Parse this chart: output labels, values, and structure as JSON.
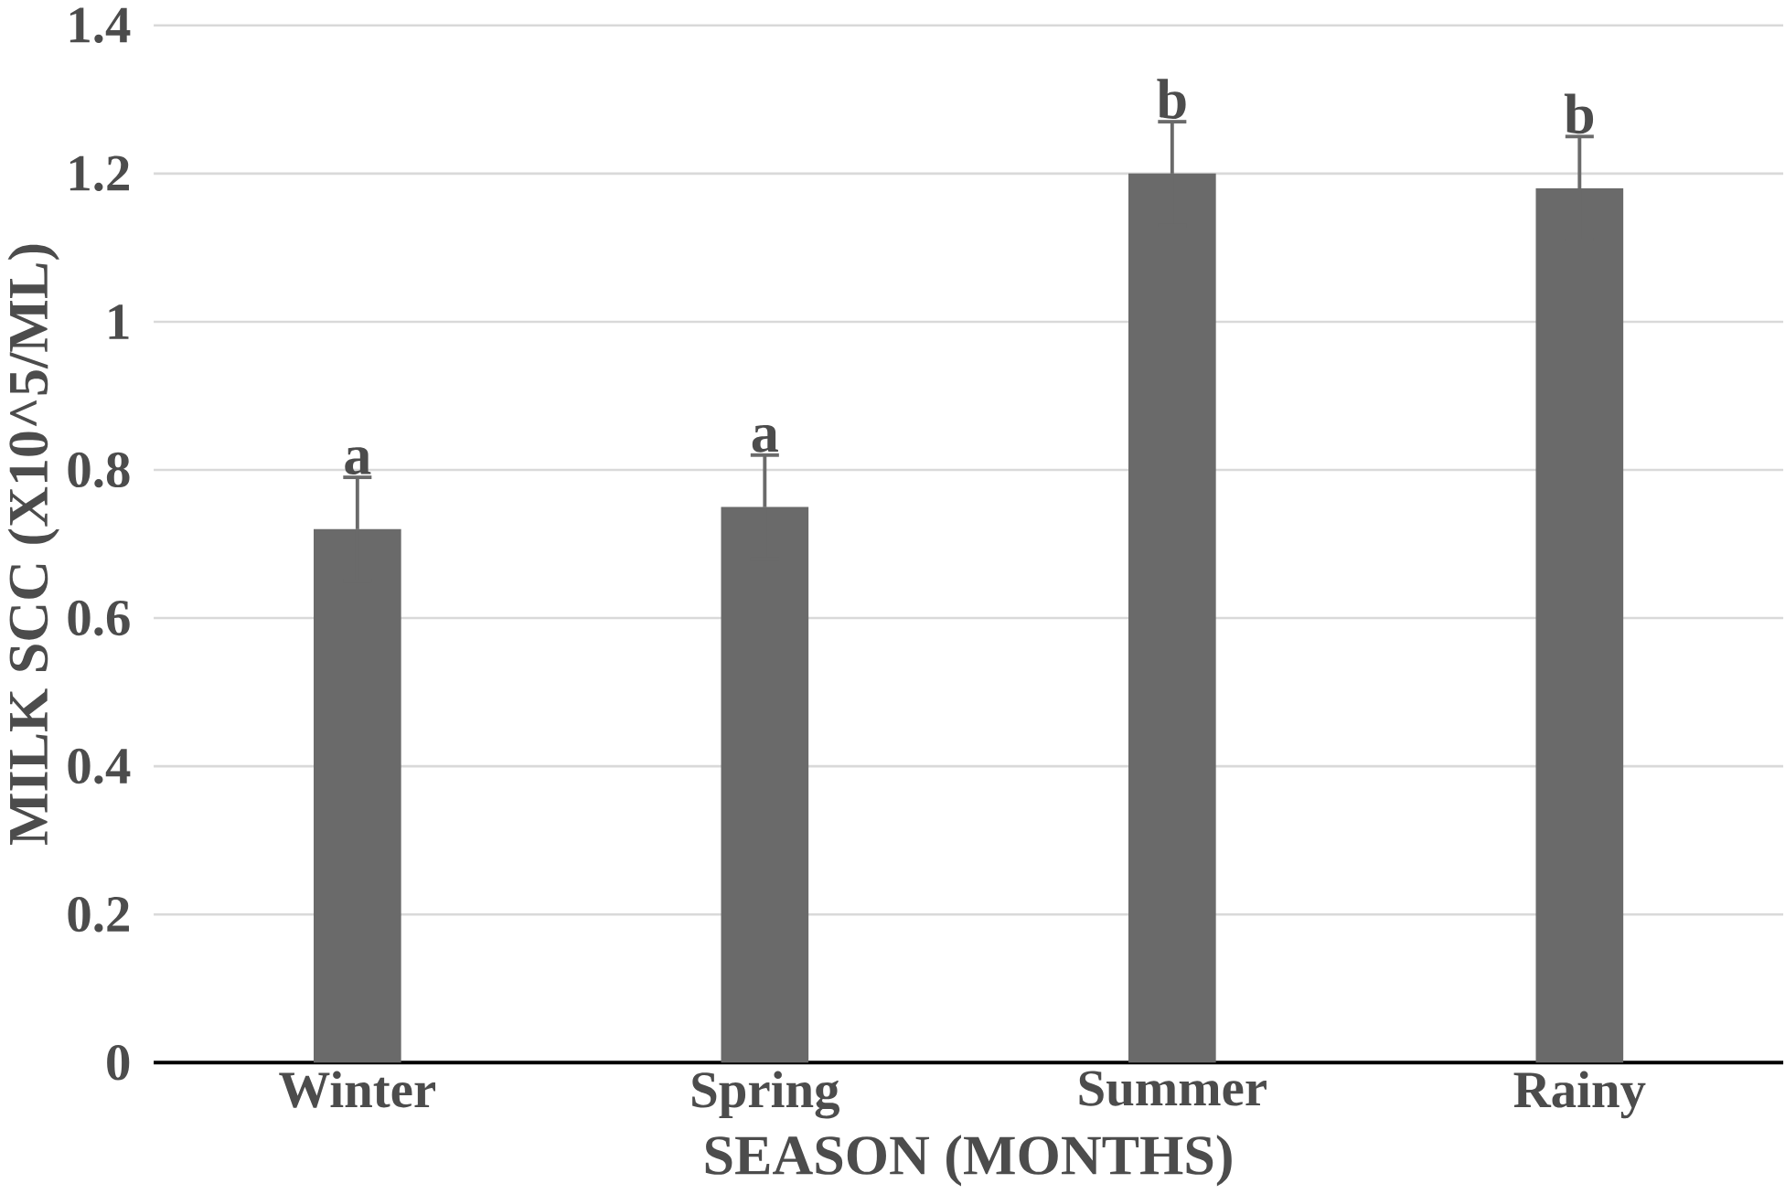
{
  "chart_data": {
    "type": "bar",
    "xlabel": "SEASON (MONTHS)",
    "ylabel": "MILK SCC (X10^5/ML)",
    "categories": [
      "Winter",
      "Spring",
      "Summer",
      "Rainy"
    ],
    "values": [
      0.72,
      0.75,
      1.2,
      1.18
    ],
    "errors": [
      0.07,
      0.07,
      0.07,
      0.07
    ],
    "color": "#6a6a6a",
    "ylim": [
      0,
      1.4
    ],
    "yticks": [
      0,
      0.2,
      0.4,
      0.6,
      0.8,
      1,
      1.2,
      1.4
    ],
    "grid": "y",
    "annotations": [
      {
        "text": "a",
        "x": "Winter",
        "y": 0.79
      },
      {
        "text": "a",
        "x": "Spring",
        "y": 0.82
      },
      {
        "text": "b",
        "x": "Summer",
        "y": 1.27
      },
      {
        "text": "b",
        "x": "Rainy",
        "y": 1.25
      }
    ]
  }
}
